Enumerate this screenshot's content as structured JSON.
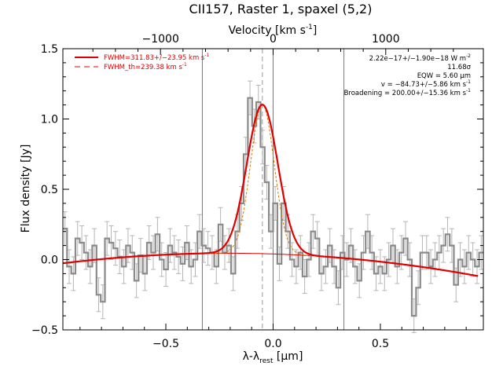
{
  "chart_data": {
    "type": "line",
    "title": "CII157, Raster 1, spaxel (5,2)",
    "xlabel": "λ-λ",
    "xlabel_sub": "rest",
    "xlabel_unit": " [μm]",
    "ylabel": "Flux density [Jy]",
    "top_axis": {
      "label": "Velocity [km s",
      "label_sup": "-1",
      "label_close": "]",
      "ticks": [
        -1000,
        0,
        1000
      ],
      "tick_labels": [
        "−1000",
        "0",
        "1000"
      ],
      "um_per_1000kms": 0.525
    },
    "xlim": [
      -0.98,
      0.98
    ],
    "ylim": [
      -0.5,
      1.5
    ],
    "xticks": [
      -0.5,
      0.0,
      0.5
    ],
    "xtick_labels": [
      "−0.5",
      "0.0",
      "0.5"
    ],
    "yticks": [
      -0.5,
      0.0,
      0.5,
      1.0,
      1.5
    ],
    "ytick_labels": [
      "−0.5",
      "0.0",
      "0.5",
      "1.0",
      "1.5"
    ],
    "vertical_lines": [
      -0.33,
      0.0,
      0.33
    ],
    "line_center": -0.05,
    "legend": [
      {
        "label": "FWHM=311.83+/−23.95 km s",
        "sup": "-1",
        "style": "solid"
      },
      {
        "label": "FWHM_th=239.38 km s",
        "sup": "-1",
        "style": "dashed"
      }
    ],
    "annotations": [
      {
        "text": "2.22e−17+/−1.90e−18 W m",
        "sup": "-2"
      },
      {
        "text": "11.68σ",
        "sup": ""
      },
      {
        "text": "EQW = 5.60 μm",
        "sup": ""
      },
      {
        "text": "v = −84.73+/−5.86 km s",
        "sup": "-1"
      },
      {
        "text": "Broadening = 200.00+/−15.36 km s",
        "sup": "-1"
      }
    ],
    "fit": {
      "amplitude": 1.06,
      "center": -0.05,
      "sigma": 0.072,
      "theoretical_sigma": 0.055,
      "continuum_quadratic": [
        0.04,
        -0.05,
        -0.12
      ]
    },
    "spectrum": {
      "x_start": -0.98,
      "x_step": 0.0196,
      "errors": 0.12,
      "values": [
        0.22,
        -0.05,
        -0.1,
        0.15,
        0.12,
        0.05,
        -0.05,
        0.1,
        -0.25,
        -0.3,
        0.15,
        0.12,
        0.08,
        0.02,
        -0.05,
        0.1,
        0.05,
        -0.15,
        0.03,
        -0.1,
        0.12,
        0.05,
        0.18,
        0.0,
        -0.07,
        0.1,
        0.05,
        0.02,
        -0.03,
        0.12,
        -0.05,
        0.0,
        0.2,
        0.1,
        0.08,
        0.05,
        -0.05,
        0.25,
        0.05,
        0.1,
        -0.1,
        0.2,
        0.4,
        0.75,
        1.15,
        0.95,
        1.12,
        0.8,
        0.55,
        0.2,
        0.4,
        -0.03,
        0.4,
        0.2,
        0.0,
        -0.05,
        0.05,
        -0.12,
        0.0,
        0.2,
        0.15,
        -0.1,
        -0.05,
        0.1,
        -0.05,
        -0.2,
        0.05,
        0.0,
        0.1,
        -0.05,
        -0.15,
        0.05,
        0.2,
        0.05,
        -0.1,
        -0.05,
        -0.1,
        0.0,
        0.1,
        -0.05,
        0.05,
        0.15,
        0.0,
        -0.4,
        -0.2,
        0.05,
        0.05,
        -0.05,
        0.0,
        0.05,
        0.1,
        0.18,
        0.1,
        -0.18,
        0.0,
        -0.05,
        0.05,
        0.0,
        -0.05,
        0.05
      ]
    }
  }
}
